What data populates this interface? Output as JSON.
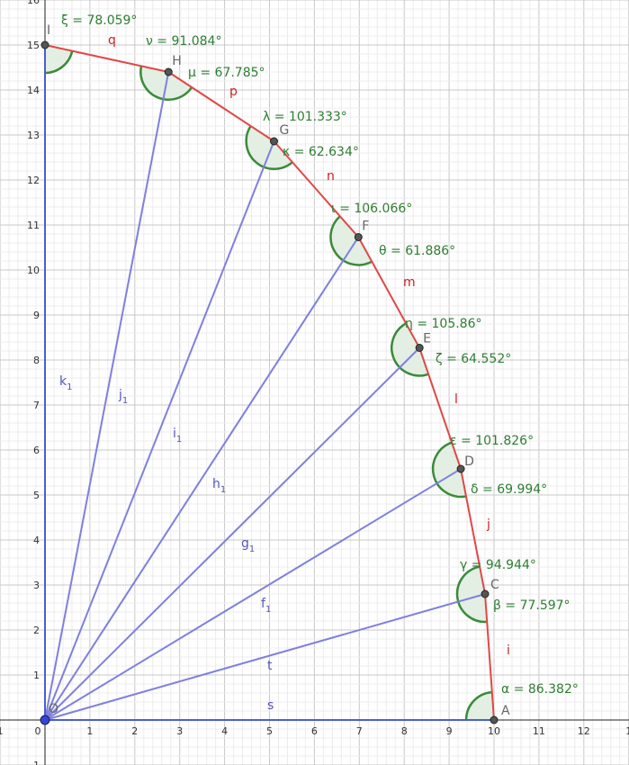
{
  "chart_data": {
    "type": "diagram",
    "xlim": [
      -1,
      13
    ],
    "ylim": [
      -1,
      16
    ],
    "grid": true,
    "x_ticks": [
      "1",
      "0",
      "1",
      "2",
      "3",
      "4",
      "5",
      "6",
      "7",
      "8",
      "9",
      "10",
      "11",
      "12",
      "1"
    ],
    "y_ticks": [
      "16",
      "15",
      "14",
      "13",
      "12",
      "11",
      "10",
      "9",
      "8",
      "7",
      "6",
      "5",
      "4",
      "3",
      "2",
      "1",
      "1"
    ],
    "origin": {
      "name": "O",
      "x": 0,
      "y": 0
    },
    "points": [
      {
        "name": "A",
        "x": 10,
        "y": 0
      },
      {
        "name": "C",
        "x": 9.8,
        "y": 2.8
      },
      {
        "name": "D",
        "x": 9.26,
        "y": 5.58
      },
      {
        "name": "E",
        "x": 8.34,
        "y": 8.27
      },
      {
        "name": "F",
        "x": 6.98,
        "y": 10.73
      },
      {
        "name": "G",
        "x": 5.1,
        "y": 12.86
      },
      {
        "name": "H",
        "x": 2.75,
        "y": 14.4
      },
      {
        "name": "I",
        "x": 0,
        "y": 15
      }
    ],
    "polyline_segments": [
      "i",
      "j",
      "l",
      "m",
      "n",
      "p",
      "q"
    ],
    "rays": [
      "s",
      "t",
      "f1",
      "g1",
      "h1",
      "i1",
      "j1",
      "k1"
    ],
    "ray_labels": [
      {
        "name": "s",
        "sub": ""
      },
      {
        "name": "t",
        "sub": ""
      },
      {
        "name": "f",
        "sub": "1"
      },
      {
        "name": "g",
        "sub": "1"
      },
      {
        "name": "h",
        "sub": "1"
      },
      {
        "name": "i",
        "sub": "1"
      },
      {
        "name": "j",
        "sub": "1"
      },
      {
        "name": "k",
        "sub": "1"
      }
    ],
    "angles": [
      {
        "label": "α = 86.382°"
      },
      {
        "label": "β = 77.597°"
      },
      {
        "label": "γ = 94.944°"
      },
      {
        "label": "δ = 69.994°"
      },
      {
        "label": "ε = 101.826°"
      },
      {
        "label": "ζ = 64.552°"
      },
      {
        "label": "η = 105.86°"
      },
      {
        "label": "θ = 61.886°"
      },
      {
        "label": "ι = 106.066°"
      },
      {
        "label": "κ = 62.634°"
      },
      {
        "label": "λ = 101.333°"
      },
      {
        "label": "μ = 67.785°"
      },
      {
        "label": "ν = 91.084°"
      },
      {
        "label": "ξ = 78.059°"
      }
    ],
    "colors": {
      "polyline": "#e04848",
      "rays": "#7f7fe0",
      "axis_ray": "#4a5fd0",
      "angle_stroke": "#3b8a3b",
      "angle_fill": "#e2efe2",
      "point": "#555555"
    }
  }
}
